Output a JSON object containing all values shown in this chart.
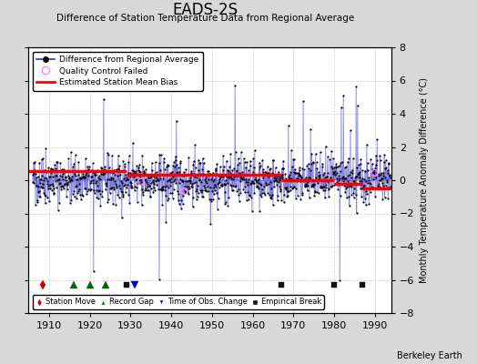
{
  "title": "EADS-2S",
  "subtitle": "Difference of Station Temperature Data from Regional Average",
  "ylabel_right": "Monthly Temperature Anomaly Difference (°C)",
  "xlim": [
    1905,
    1994
  ],
  "ylim": [
    -8,
    8
  ],
  "yticks": [
    -8,
    -6,
    -4,
    -2,
    0,
    2,
    4,
    6,
    8
  ],
  "xticks": [
    1910,
    1920,
    1930,
    1940,
    1950,
    1960,
    1970,
    1980,
    1990
  ],
  "background_color": "#d8d8d8",
  "plot_bg_color": "#ffffff",
  "seed": 42,
  "station_moves": [
    1908.5
  ],
  "record_gaps": [
    1916.0,
    1920.0,
    1924.0
  ],
  "obs_changes": [
    1931.0
  ],
  "empirical_breaks": [
    1929.0,
    1967.0,
    1980.0,
    1987.0
  ],
  "bias_segments": [
    {
      "xstart": 1905,
      "xend": 1929,
      "bias": 0.55
    },
    {
      "xstart": 1929,
      "xend": 1967,
      "bias": 0.35
    },
    {
      "xstart": 1967,
      "xend": 1980,
      "bias": 0.0
    },
    {
      "xstart": 1980,
      "xend": 1987,
      "bias": -0.2
    },
    {
      "xstart": 1987,
      "xend": 1994,
      "bias": -0.5
    }
  ],
  "watermark": "Berkeley Earth",
  "line_color": "#3333cc",
  "dot_color": "#000000",
  "bias_color": "#ff0000",
  "qc_color": "#ff88ff",
  "station_move_color": "#cc0000",
  "record_gap_color": "#006600",
  "obs_change_color": "#0000cc",
  "empirical_break_color": "#111111"
}
